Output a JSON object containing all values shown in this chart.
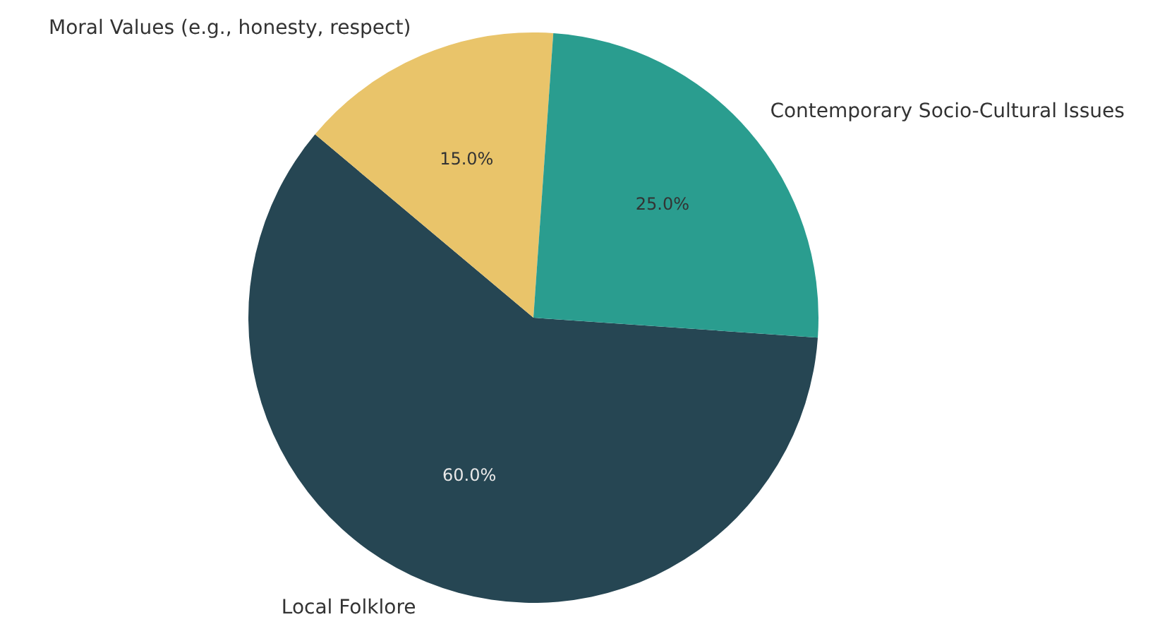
{
  "chart_data": {
    "type": "pie",
    "categories": [
      "Local Folklore",
      "Moral Values (e.g., honesty, respect)",
      "Contemporary Socio-Cultural Issues"
    ],
    "values": [
      60,
      15,
      25
    ],
    "colors": [
      "#264653",
      "#e9c46a",
      "#2a9d8f"
    ],
    "value_labels": [
      "60.0%",
      "15.0%",
      "25.0%"
    ]
  }
}
